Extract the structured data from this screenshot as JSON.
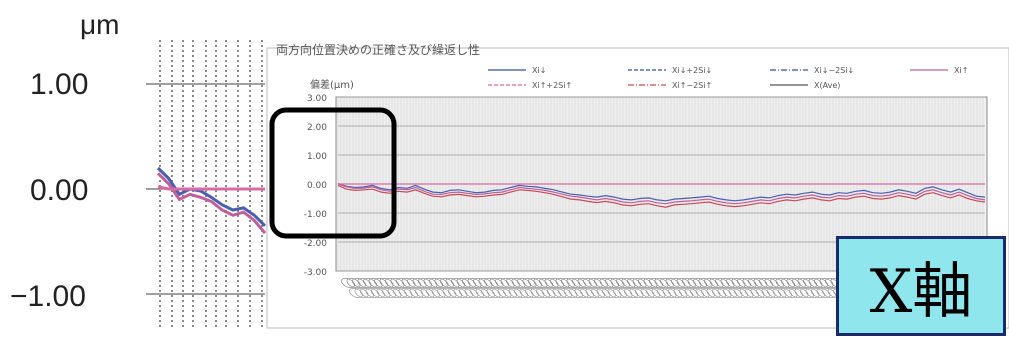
{
  "chart_data": {
    "type": "line",
    "title": "両方向位置決めの正確さ及び繰返し性",
    "unit_label": "μm",
    "ylabel": "偏差(μm)",
    "ylim": [
      -3.0,
      3.0
    ],
    "yticks": [
      "3.00",
      "2.00",
      "1.00",
      "0.00",
      "-1.00",
      "-2.00",
      "-3.00"
    ],
    "big_yticks": [
      "1.00",
      "0.00",
      "−1.00"
    ],
    "big_ylim": [
      -1.0,
      1.0
    ],
    "legend": [
      {
        "label": "Xi↓",
        "color": "#3a4fa0",
        "dash": "solid"
      },
      {
        "label": "Xi↓+2Si↓",
        "color": "#3a4fa0",
        "dash": "dashed"
      },
      {
        "label": "Xi↓−2Si↓",
        "color": "#3a4fa0",
        "dash": "dashdot"
      },
      {
        "label": "Xi↑",
        "color": "#c0609a",
        "dash": "solid"
      },
      {
        "label": "Xi↑+2Si↑",
        "color": "#d2679e",
        "dash": "dashed"
      },
      {
        "label": "Xi↑−2Si↑",
        "color": "#c84a58",
        "dash": "dashdot"
      },
      {
        "label": "X(Ave)",
        "color": "#555555",
        "dash": "solid"
      }
    ],
    "series": [
      {
        "name": "Xi↓",
        "color": "#4a5fb0",
        "values": [
          0.02,
          -0.08,
          -0.12,
          -0.1,
          -0.05,
          -0.15,
          -0.2,
          -0.12,
          -0.15,
          -0.05,
          -0.18,
          -0.28,
          -0.3,
          -0.22,
          -0.2,
          -0.25,
          -0.3,
          -0.28,
          -0.22,
          -0.2,
          -0.12,
          -0.05,
          -0.08,
          -0.1,
          -0.15,
          -0.2,
          -0.28,
          -0.35,
          -0.38,
          -0.42,
          -0.45,
          -0.4,
          -0.45,
          -0.52,
          -0.55,
          -0.5,
          -0.48,
          -0.55,
          -0.58,
          -0.52,
          -0.5,
          -0.48,
          -0.45,
          -0.42,
          -0.5,
          -0.55,
          -0.58,
          -0.55,
          -0.5,
          -0.45,
          -0.48,
          -0.4,
          -0.35,
          -0.38,
          -0.32,
          -0.28,
          -0.35,
          -0.38,
          -0.3,
          -0.32,
          -0.25,
          -0.22,
          -0.3,
          -0.32,
          -0.28,
          -0.2,
          -0.25,
          -0.32,
          -0.15,
          -0.1,
          -0.2,
          -0.28,
          -0.18,
          -0.3,
          -0.42,
          -0.45
        ]
      },
      {
        "name": "Xi↑",
        "color": "#c0609a",
        "values": [
          0.0,
          -0.1,
          -0.15,
          -0.14,
          -0.1,
          -0.2,
          -0.25,
          -0.18,
          -0.2,
          -0.12,
          -0.25,
          -0.35,
          -0.36,
          -0.3,
          -0.28,
          -0.32,
          -0.36,
          -0.34,
          -0.3,
          -0.28,
          -0.2,
          -0.12,
          -0.15,
          -0.18,
          -0.22,
          -0.28,
          -0.35,
          -0.42,
          -0.45,
          -0.5,
          -0.55,
          -0.5,
          -0.55,
          -0.62,
          -0.65,
          -0.6,
          -0.58,
          -0.65,
          -0.68,
          -0.62,
          -0.6,
          -0.58,
          -0.55,
          -0.52,
          -0.6,
          -0.65,
          -0.68,
          -0.65,
          -0.6,
          -0.55,
          -0.58,
          -0.5,
          -0.45,
          -0.48,
          -0.42,
          -0.38,
          -0.45,
          -0.48,
          -0.4,
          -0.42,
          -0.35,
          -0.32,
          -0.4,
          -0.42,
          -0.38,
          -0.3,
          -0.35,
          -0.42,
          -0.25,
          -0.2,
          -0.3,
          -0.38,
          -0.28,
          -0.4,
          -0.5,
          -0.55
        ]
      },
      {
        "name": "Xi↑−2Si↑",
        "color": "#c84a58",
        "values": [
          -0.05,
          -0.18,
          -0.22,
          -0.2,
          -0.18,
          -0.28,
          -0.32,
          -0.25,
          -0.28,
          -0.2,
          -0.32,
          -0.42,
          -0.44,
          -0.38,
          -0.36,
          -0.4,
          -0.44,
          -0.42,
          -0.38,
          -0.36,
          -0.28,
          -0.2,
          -0.22,
          -0.25,
          -0.3,
          -0.36,
          -0.44,
          -0.52,
          -0.55,
          -0.6,
          -0.64,
          -0.6,
          -0.65,
          -0.72,
          -0.75,
          -0.7,
          -0.68,
          -0.75,
          -0.8,
          -0.72,
          -0.7,
          -0.68,
          -0.65,
          -0.62,
          -0.7,
          -0.75,
          -0.78,
          -0.75,
          -0.7,
          -0.65,
          -0.68,
          -0.6,
          -0.55,
          -0.58,
          -0.52,
          -0.48,
          -0.55,
          -0.58,
          -0.5,
          -0.52,
          -0.45,
          -0.42,
          -0.5,
          -0.52,
          -0.48,
          -0.4,
          -0.45,
          -0.52,
          -0.35,
          -0.3,
          -0.4,
          -0.48,
          -0.38,
          -0.5,
          -0.58,
          -0.62
        ]
      },
      {
        "name": "X(Ave)",
        "color": "#d86aa6",
        "values": [
          0.0,
          0.0,
          0.0,
          0.0,
          0.0,
          0.0,
          0.0,
          0.0,
          0.0,
          0.0,
          0.0,
          0.0,
          0.0,
          0.0,
          0.0,
          0.0,
          0.0,
          0.0,
          0.0,
          0.0,
          0.0,
          0.0,
          0.0,
          0.0,
          0.0,
          0.0,
          0.0,
          0.0,
          0.0,
          0.0,
          0.0,
          0.0,
          0.0,
          0.0,
          0.0,
          0.0,
          0.0,
          0.0,
          0.0,
          0.0,
          0.0,
          0.0,
          0.0,
          0.0,
          0.0,
          0.0,
          0.0,
          0.0,
          0.0,
          0.0,
          0.0,
          0.0,
          0.0,
          0.0,
          0.0,
          0.0,
          0.0,
          0.0,
          0.0,
          0.0,
          0.0,
          0.0,
          0.0,
          0.0,
          0.0,
          0.0,
          0.0,
          0.0,
          0.0,
          0.0,
          0.0,
          0.0,
          0.0,
          0.0,
          0.0,
          0.0
        ]
      }
    ],
    "zoom_series": [
      {
        "name": "Xi↓",
        "color": "#4a5fb0",
        "values": [
          0.2,
          0.1,
          -0.05,
          0.0,
          -0.02,
          -0.08,
          -0.15,
          -0.2,
          -0.18,
          -0.25,
          -0.35
        ]
      },
      {
        "name": "Xi↑",
        "color": "#c0609a",
        "values": [
          0.15,
          0.05,
          -0.1,
          -0.05,
          -0.08,
          -0.12,
          -0.2,
          -0.25,
          -0.22,
          -0.3,
          -0.42
        ]
      },
      {
        "name": "X(Ave)",
        "color": "#d86aa6",
        "values": [
          0.02,
          0.0,
          0.0,
          0.0,
          0.0,
          0.0,
          0.0,
          0.0,
          0.0,
          0.0,
          0.0
        ]
      }
    ],
    "grid": true
  },
  "axis_badge": "X軸"
}
